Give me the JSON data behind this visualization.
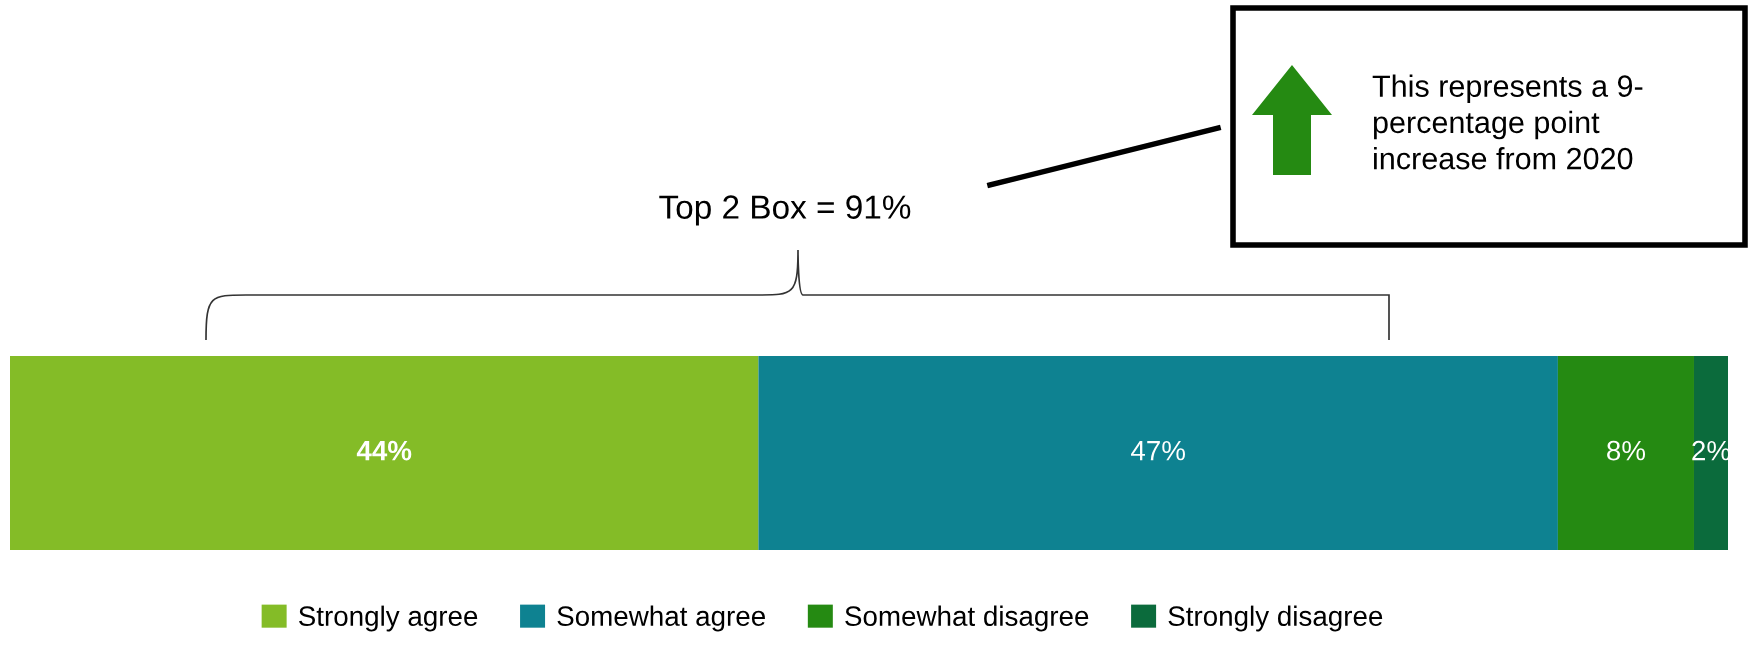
{
  "chart_data": {
    "type": "bar",
    "orientation": "horizontal",
    "stacked": true,
    "legend": "bottom",
    "categories": [
      null
    ],
    "series": [
      {
        "name": "Strongly agree",
        "color": "#84bc27",
        "values": [
          44
        ],
        "value_labels": [
          "44%"
        ]
      },
      {
        "name": "Somewhat agree",
        "color": "#0e8291",
        "values": [
          47
        ],
        "value_labels": [
          "47%"
        ]
      },
      {
        "name": "Somewhat disagree",
        "color": "#258a12",
        "values": [
          8
        ],
        "value_labels": [
          "8%"
        ]
      },
      {
        "name": "Strongly disagree",
        "color": "#0b6b3c",
        "values": [
          2
        ],
        "value_labels": [
          "2%"
        ]
      }
    ],
    "annotations": [
      "Top 2 Box = 91%",
      "This represents a 9-\npercentage point\nincrease from 2020"
    ]
  }
}
